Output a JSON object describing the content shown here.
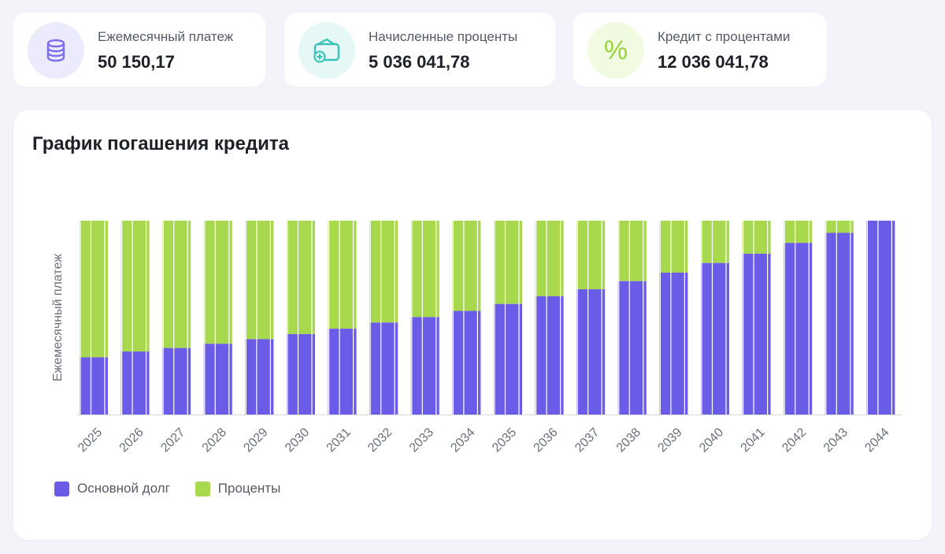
{
  "stats": [
    {
      "label": "Ежемесячный платеж",
      "value": "50 150,17",
      "icon": "coins-stack-icon"
    },
    {
      "label": "Начисленные проценты",
      "value": "5 036 041,78",
      "icon": "wallet-plus-icon"
    },
    {
      "label": "Кредит с процентами",
      "value": "12 036 041,78",
      "icon": "percent-icon"
    }
  ],
  "percent_symbol": "%",
  "colors": {
    "principal": "#6b5ce7",
    "interest": "#a8d84e",
    "icon_purple": "#7b6cf0",
    "icon_teal": "#3cc3b5",
    "icon_green": "#9ad23a"
  },
  "chart": {
    "title": "График погашения кредита",
    "ylabel": "Ежемесячный платеж",
    "legend": [
      "Основной долг",
      "Проценты"
    ]
  },
  "chart_data": {
    "type": "bar",
    "stacked": true,
    "title": "График погашения кредита",
    "xlabel": "",
    "ylabel": "Ежемесячный платеж",
    "ylim": [
      0,
      50150.17
    ],
    "categories": [
      "2025",
      "2026",
      "2027",
      "2028",
      "2029",
      "2030",
      "2031",
      "2032",
      "2033",
      "2034",
      "2035",
      "2036",
      "2037",
      "2038",
      "2039",
      "2040",
      "2041",
      "2042",
      "2043",
      "2044"
    ],
    "series": [
      {
        "name": "Основной долг",
        "values": [
          14800,
          16300,
          17200,
          18300,
          19500,
          20800,
          22200,
          23800,
          25200,
          26800,
          28600,
          30600,
          32400,
          34500,
          36700,
          39200,
          41600,
          44400,
          47000,
          50150
        ]
      },
      {
        "name": "Проценты",
        "values": [
          35350,
          33850,
          32950,
          31850,
          30650,
          29350,
          27950,
          26350,
          24950,
          23350,
          21550,
          19550,
          17750,
          15650,
          13450,
          10950,
          8550,
          5750,
          3150,
          0
        ]
      }
    ]
  }
}
